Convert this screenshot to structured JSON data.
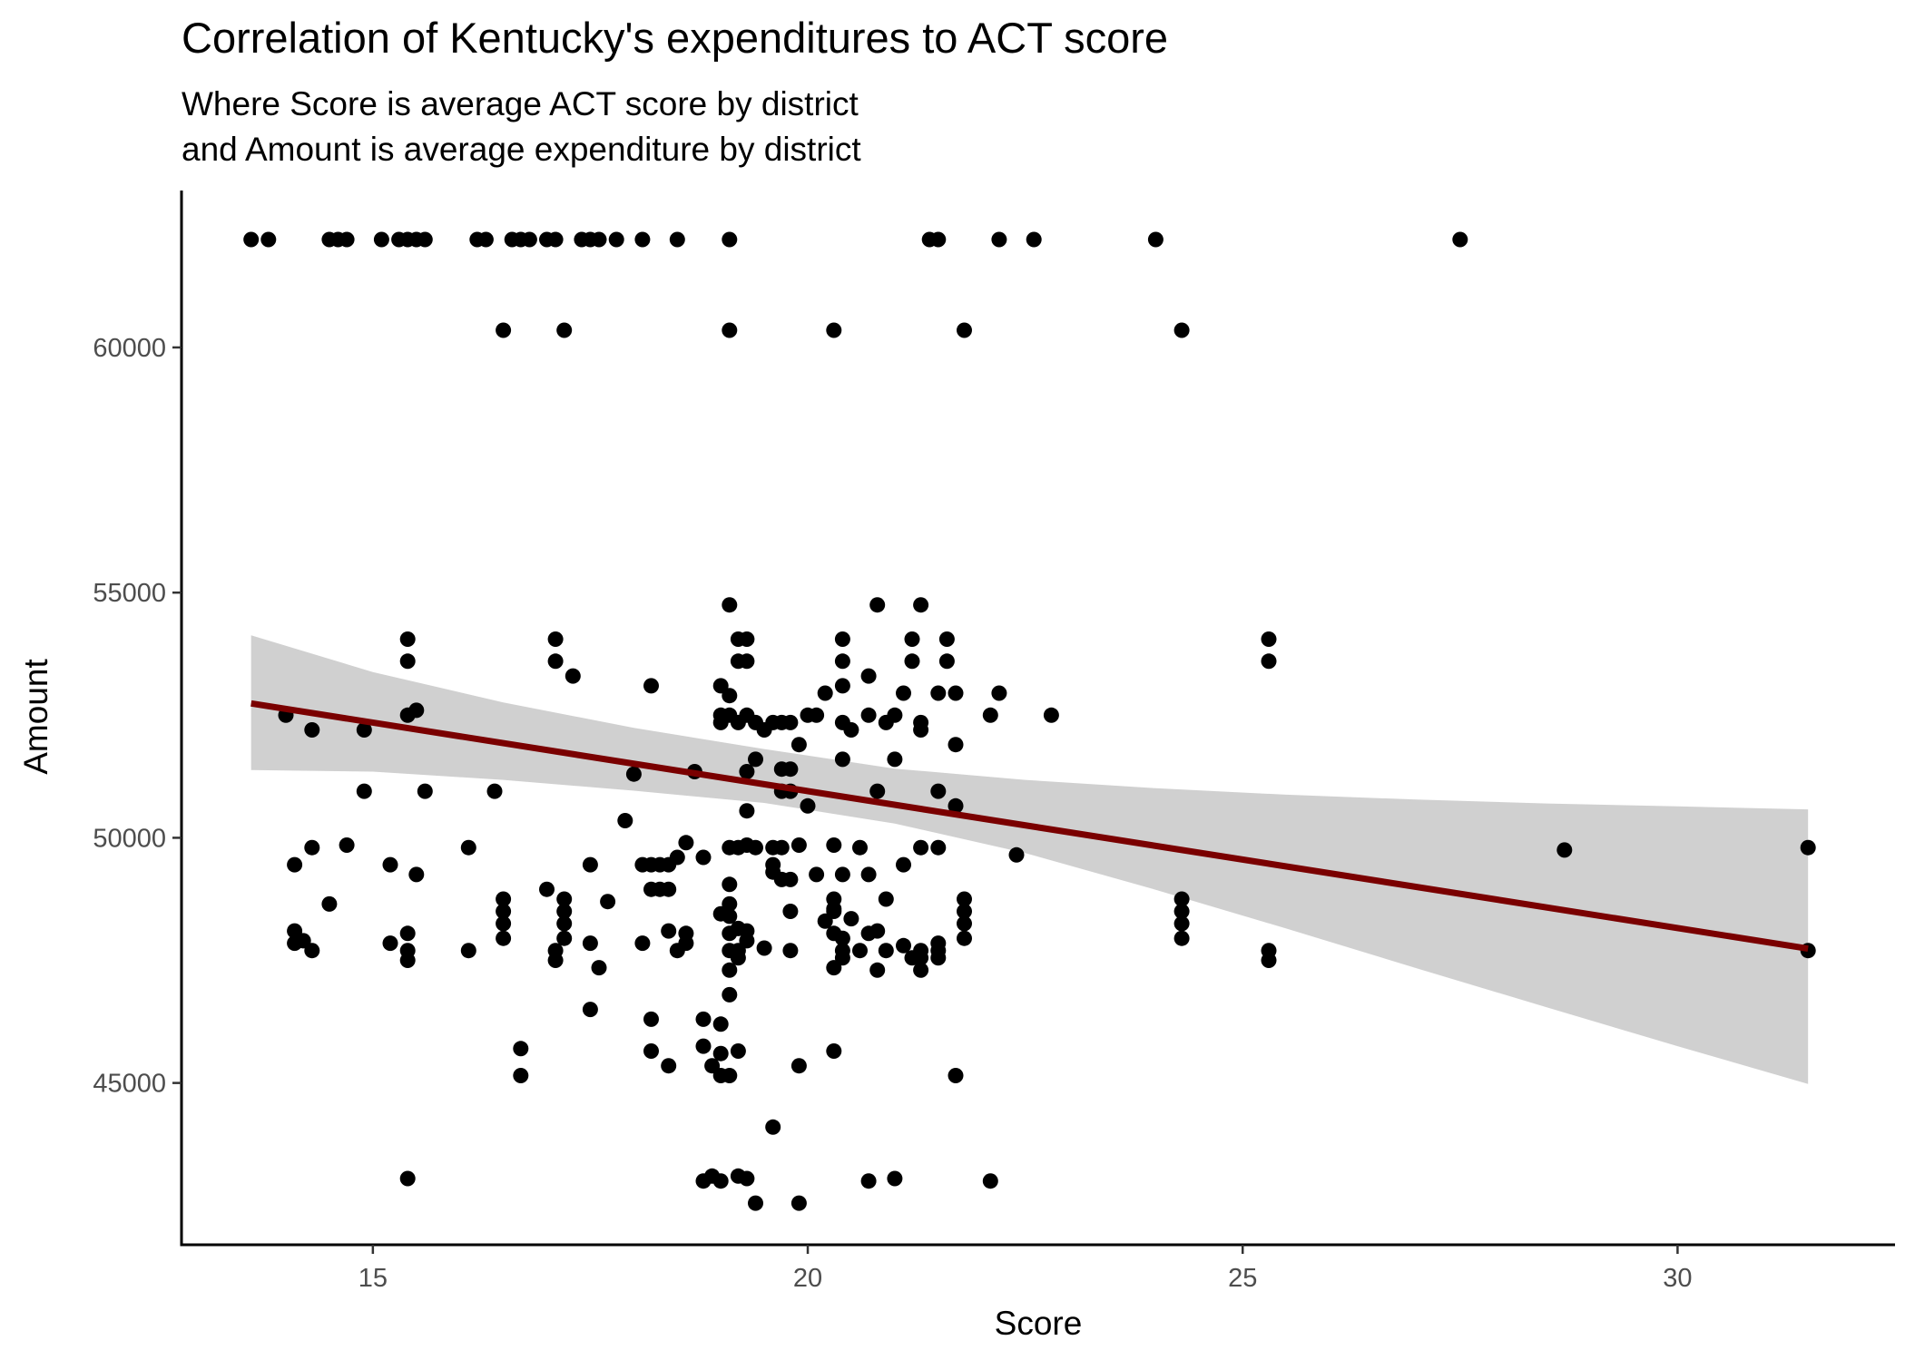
{
  "chart_data": {
    "type": "scatter",
    "title": "Correlation of Kentucky's expenditures to ACT score",
    "subtitle_lines": [
      "Where Score is average ACT score by district",
      "and Amount is average expenditure by district"
    ],
    "xlabel": "Score",
    "ylabel": "Amount",
    "xlim": [
      12.8,
      32.5
    ],
    "ylim": [
      41700,
      63200
    ],
    "xticks": [
      15,
      20,
      25,
      30
    ],
    "yticks": [
      45000,
      50000,
      55000,
      60000
    ],
    "grid": false,
    "legend": "none",
    "point_color": "#000000",
    "trend_color": "#7a0000",
    "band_color": "#bebebe",
    "points": [
      [
        13.6,
        62200
      ],
      [
        13.8,
        62200
      ],
      [
        14.5,
        62200
      ],
      [
        14.6,
        62200
      ],
      [
        14.7,
        62200
      ],
      [
        15.1,
        62200
      ],
      [
        15.3,
        62200
      ],
      [
        15.4,
        62200
      ],
      [
        15.5,
        62200
      ],
      [
        15.6,
        62200
      ],
      [
        16.2,
        62200
      ],
      [
        16.3,
        62200
      ],
      [
        16.6,
        62200
      ],
      [
        16.7,
        62200
      ],
      [
        16.8,
        62200
      ],
      [
        17.0,
        62200
      ],
      [
        17.1,
        62200
      ],
      [
        17.4,
        62200
      ],
      [
        17.5,
        62200
      ],
      [
        17.6,
        62200
      ],
      [
        17.8,
        62200
      ],
      [
        18.1,
        62200
      ],
      [
        18.5,
        62200
      ],
      [
        19.1,
        62200
      ],
      [
        21.4,
        62200
      ],
      [
        21.5,
        62200
      ],
      [
        22.2,
        62200
      ],
      [
        22.6,
        62200
      ],
      [
        24.0,
        62200
      ],
      [
        27.5,
        62200
      ],
      [
        16.5,
        60350
      ],
      [
        17.2,
        60350
      ],
      [
        19.1,
        60350
      ],
      [
        20.3,
        60350
      ],
      [
        21.8,
        60350
      ],
      [
        24.3,
        60350
      ],
      [
        19.1,
        54750
      ],
      [
        20.8,
        54750
      ],
      [
        21.3,
        54750
      ],
      [
        15.4,
        54050
      ],
      [
        17.1,
        54050
      ],
      [
        19.2,
        54050
      ],
      [
        19.3,
        54050
      ],
      [
        20.4,
        54050
      ],
      [
        21.2,
        54050
      ],
      [
        21.6,
        54050
      ],
      [
        25.3,
        54050
      ],
      [
        15.4,
        53600
      ],
      [
        17.1,
        53600
      ],
      [
        19.2,
        53600
      ],
      [
        19.3,
        53600
      ],
      [
        20.4,
        53600
      ],
      [
        21.2,
        53600
      ],
      [
        21.6,
        53600
      ],
      [
        25.3,
        53600
      ],
      [
        17.3,
        53300
      ],
      [
        20.7,
        53300
      ],
      [
        18.2,
        53100
      ],
      [
        19.0,
        53100
      ],
      [
        20.4,
        53100
      ],
      [
        20.2,
        52950
      ],
      [
        21.1,
        52950
      ],
      [
        21.5,
        52950
      ],
      [
        21.7,
        52950
      ],
      [
        22.2,
        52950
      ],
      [
        19.1,
        52900
      ],
      [
        15.5,
        52600
      ],
      [
        15.4,
        52500
      ],
      [
        14.0,
        52500
      ],
      [
        19.0,
        52500
      ],
      [
        19.1,
        52500
      ],
      [
        19.3,
        52500
      ],
      [
        20.0,
        52500
      ],
      [
        20.1,
        52500
      ],
      [
        20.7,
        52500
      ],
      [
        21.0,
        52500
      ],
      [
        22.1,
        52500
      ],
      [
        22.8,
        52500
      ],
      [
        19.0,
        52350
      ],
      [
        19.2,
        52350
      ],
      [
        19.4,
        52350
      ],
      [
        19.6,
        52350
      ],
      [
        19.7,
        52350
      ],
      [
        19.8,
        52350
      ],
      [
        20.4,
        52350
      ],
      [
        20.9,
        52350
      ],
      [
        21.3,
        52350
      ],
      [
        14.3,
        52200
      ],
      [
        14.9,
        52200
      ],
      [
        19.5,
        52200
      ],
      [
        20.5,
        52200
      ],
      [
        21.3,
        52200
      ],
      [
        19.9,
        51900
      ],
      [
        21.7,
        51900
      ],
      [
        19.4,
        51600
      ],
      [
        20.4,
        51600
      ],
      [
        21.0,
        51600
      ],
      [
        19.7,
        51400
      ],
      [
        19.8,
        51400
      ],
      [
        18.0,
        51300
      ],
      [
        18.7,
        51350
      ],
      [
        19.3,
        51350
      ],
      [
        14.9,
        50950
      ],
      [
        15.6,
        50950
      ],
      [
        16.4,
        50950
      ],
      [
        19.7,
        50950
      ],
      [
        19.8,
        50950
      ],
      [
        20.8,
        50950
      ],
      [
        21.5,
        50950
      ],
      [
        20.0,
        50650
      ],
      [
        21.7,
        50650
      ],
      [
        19.3,
        50550
      ],
      [
        17.9,
        50350
      ],
      [
        14.3,
        49800
      ],
      [
        14.7,
        49850
      ],
      [
        16.1,
        49800
      ],
      [
        18.6,
        49900
      ],
      [
        19.1,
        49800
      ],
      [
        19.2,
        49800
      ],
      [
        19.3,
        49850
      ],
      [
        19.4,
        49800
      ],
      [
        19.6,
        49800
      ],
      [
        19.7,
        49800
      ],
      [
        19.9,
        49850
      ],
      [
        20.3,
        49850
      ],
      [
        20.6,
        49800
      ],
      [
        21.3,
        49800
      ],
      [
        21.5,
        49800
      ],
      [
        22.4,
        49650
      ],
      [
        28.7,
        49750
      ],
      [
        31.5,
        49800
      ],
      [
        14.1,
        49450
      ],
      [
        15.2,
        49450
      ],
      [
        17.5,
        49450
      ],
      [
        18.1,
        49450
      ],
      [
        18.2,
        49450
      ],
      [
        18.3,
        49450
      ],
      [
        18.4,
        49450
      ],
      [
        18.5,
        49600
      ],
      [
        18.8,
        49600
      ],
      [
        19.6,
        49450
      ],
      [
        21.1,
        49450
      ],
      [
        15.5,
        49250
      ],
      [
        19.6,
        49300
      ],
      [
        19.7,
        49150
      ],
      [
        19.8,
        49150
      ],
      [
        20.1,
        49250
      ],
      [
        20.4,
        49250
      ],
      [
        20.7,
        49250
      ],
      [
        19.1,
        49050
      ],
      [
        17.0,
        48950
      ],
      [
        18.2,
        48950
      ],
      [
        18.3,
        48950
      ],
      [
        18.4,
        48950
      ],
      [
        16.5,
        48750
      ],
      [
        17.2,
        48750
      ],
      [
        17.7,
        48700
      ],
      [
        14.5,
        48650
      ],
      [
        19.1,
        48650
      ],
      [
        20.3,
        48750
      ],
      [
        20.3,
        48550
      ],
      [
        20.9,
        48750
      ],
      [
        21.8,
        48750
      ],
      [
        24.3,
        48750
      ],
      [
        16.5,
        48500
      ],
      [
        17.2,
        48500
      ],
      [
        19.0,
        48450
      ],
      [
        19.1,
        48400
      ],
      [
        19.8,
        48500
      ],
      [
        20.3,
        48500
      ],
      [
        21.8,
        48500
      ],
      [
        24.3,
        48500
      ],
      [
        16.5,
        48250
      ],
      [
        17.2,
        48250
      ],
      [
        19.2,
        48150
      ],
      [
        20.2,
        48300
      ],
      [
        20.5,
        48350
      ],
      [
        21.8,
        48250
      ],
      [
        24.3,
        48250
      ],
      [
        14.1,
        48100
      ],
      [
        15.4,
        48050
      ],
      [
        18.4,
        48100
      ],
      [
        18.6,
        48050
      ],
      [
        19.1,
        48050
      ],
      [
        19.3,
        48100
      ],
      [
        20.3,
        48050
      ],
      [
        20.7,
        48050
      ],
      [
        20.8,
        48100
      ],
      [
        14.2,
        47900
      ],
      [
        14.1,
        47850
      ],
      [
        15.2,
        47850
      ],
      [
        16.5,
        47950
      ],
      [
        17.2,
        47950
      ],
      [
        17.5,
        47850
      ],
      [
        18.1,
        47850
      ],
      [
        18.6,
        47850
      ],
      [
        19.3,
        47900
      ],
      [
        20.4,
        47950
      ],
      [
        21.5,
        47850
      ],
      [
        21.8,
        47950
      ],
      [
        24.3,
        47950
      ],
      [
        14.3,
        47700
      ],
      [
        15.4,
        47700
      ],
      [
        16.1,
        47700
      ],
      [
        17.1,
        47700
      ],
      [
        18.5,
        47700
      ],
      [
        19.1,
        47700
      ],
      [
        19.2,
        47700
      ],
      [
        19.5,
        47750
      ],
      [
        19.8,
        47700
      ],
      [
        20.4,
        47700
      ],
      [
        20.6,
        47700
      ],
      [
        20.9,
        47700
      ],
      [
        21.1,
        47800
      ],
      [
        21.3,
        47700
      ],
      [
        21.5,
        47700
      ],
      [
        25.3,
        47700
      ],
      [
        31.5,
        47700
      ],
      [
        15.4,
        47500
      ],
      [
        17.1,
        47500
      ],
      [
        19.2,
        47550
      ],
      [
        20.4,
        47550
      ],
      [
        21.2,
        47550
      ],
      [
        21.3,
        47550
      ],
      [
        21.5,
        47550
      ],
      [
        25.3,
        47500
      ],
      [
        17.6,
        47350
      ],
      [
        19.1,
        47300
      ],
      [
        20.3,
        47350
      ],
      [
        20.8,
        47300
      ],
      [
        21.3,
        47300
      ],
      [
        19.1,
        46800
      ],
      [
        17.5,
        46500
      ],
      [
        18.2,
        46300
      ],
      [
        18.8,
        46300
      ],
      [
        19.0,
        46200
      ],
      [
        16.7,
        45700
      ],
      [
        18.8,
        45750
      ],
      [
        18.2,
        45650
      ],
      [
        19.0,
        45600
      ],
      [
        19.2,
        45650
      ],
      [
        20.3,
        45650
      ],
      [
        18.4,
        45350
      ],
      [
        18.9,
        45350
      ],
      [
        19.9,
        45350
      ],
      [
        16.7,
        45150
      ],
      [
        19.0,
        45150
      ],
      [
        19.1,
        45150
      ],
      [
        21.7,
        45150
      ],
      [
        19.6,
        44100
      ],
      [
        15.4,
        43050
      ],
      [
        18.8,
        43000
      ],
      [
        18.9,
        43100
      ],
      [
        19.0,
        43000
      ],
      [
        19.2,
        43100
      ],
      [
        19.3,
        43050
      ],
      [
        20.7,
        43000
      ],
      [
        21.0,
        43050
      ],
      [
        22.1,
        43000
      ],
      [
        19.4,
        42550
      ],
      [
        19.9,
        42550
      ]
    ],
    "trend": {
      "x": [
        13.6,
        31.5
      ],
      "y": [
        52740,
        47740
      ]
    },
    "band": {
      "x": [
        13.6,
        15.0,
        16.5,
        18.0,
        19.5,
        21.0,
        22.5,
        24.0,
        25.5,
        27.0,
        28.5,
        30.0,
        31.5
      ],
      "upper": [
        54130,
        53380,
        52760,
        52240,
        51810,
        51410,
        51180,
        51010,
        50880,
        50780,
        50700,
        50640,
        50580
      ],
      "lower": [
        51380,
        51350,
        51180,
        50960,
        50710,
        50290,
        49690,
        48940,
        48150,
        47340,
        46540,
        45750,
        44980
      ]
    }
  }
}
